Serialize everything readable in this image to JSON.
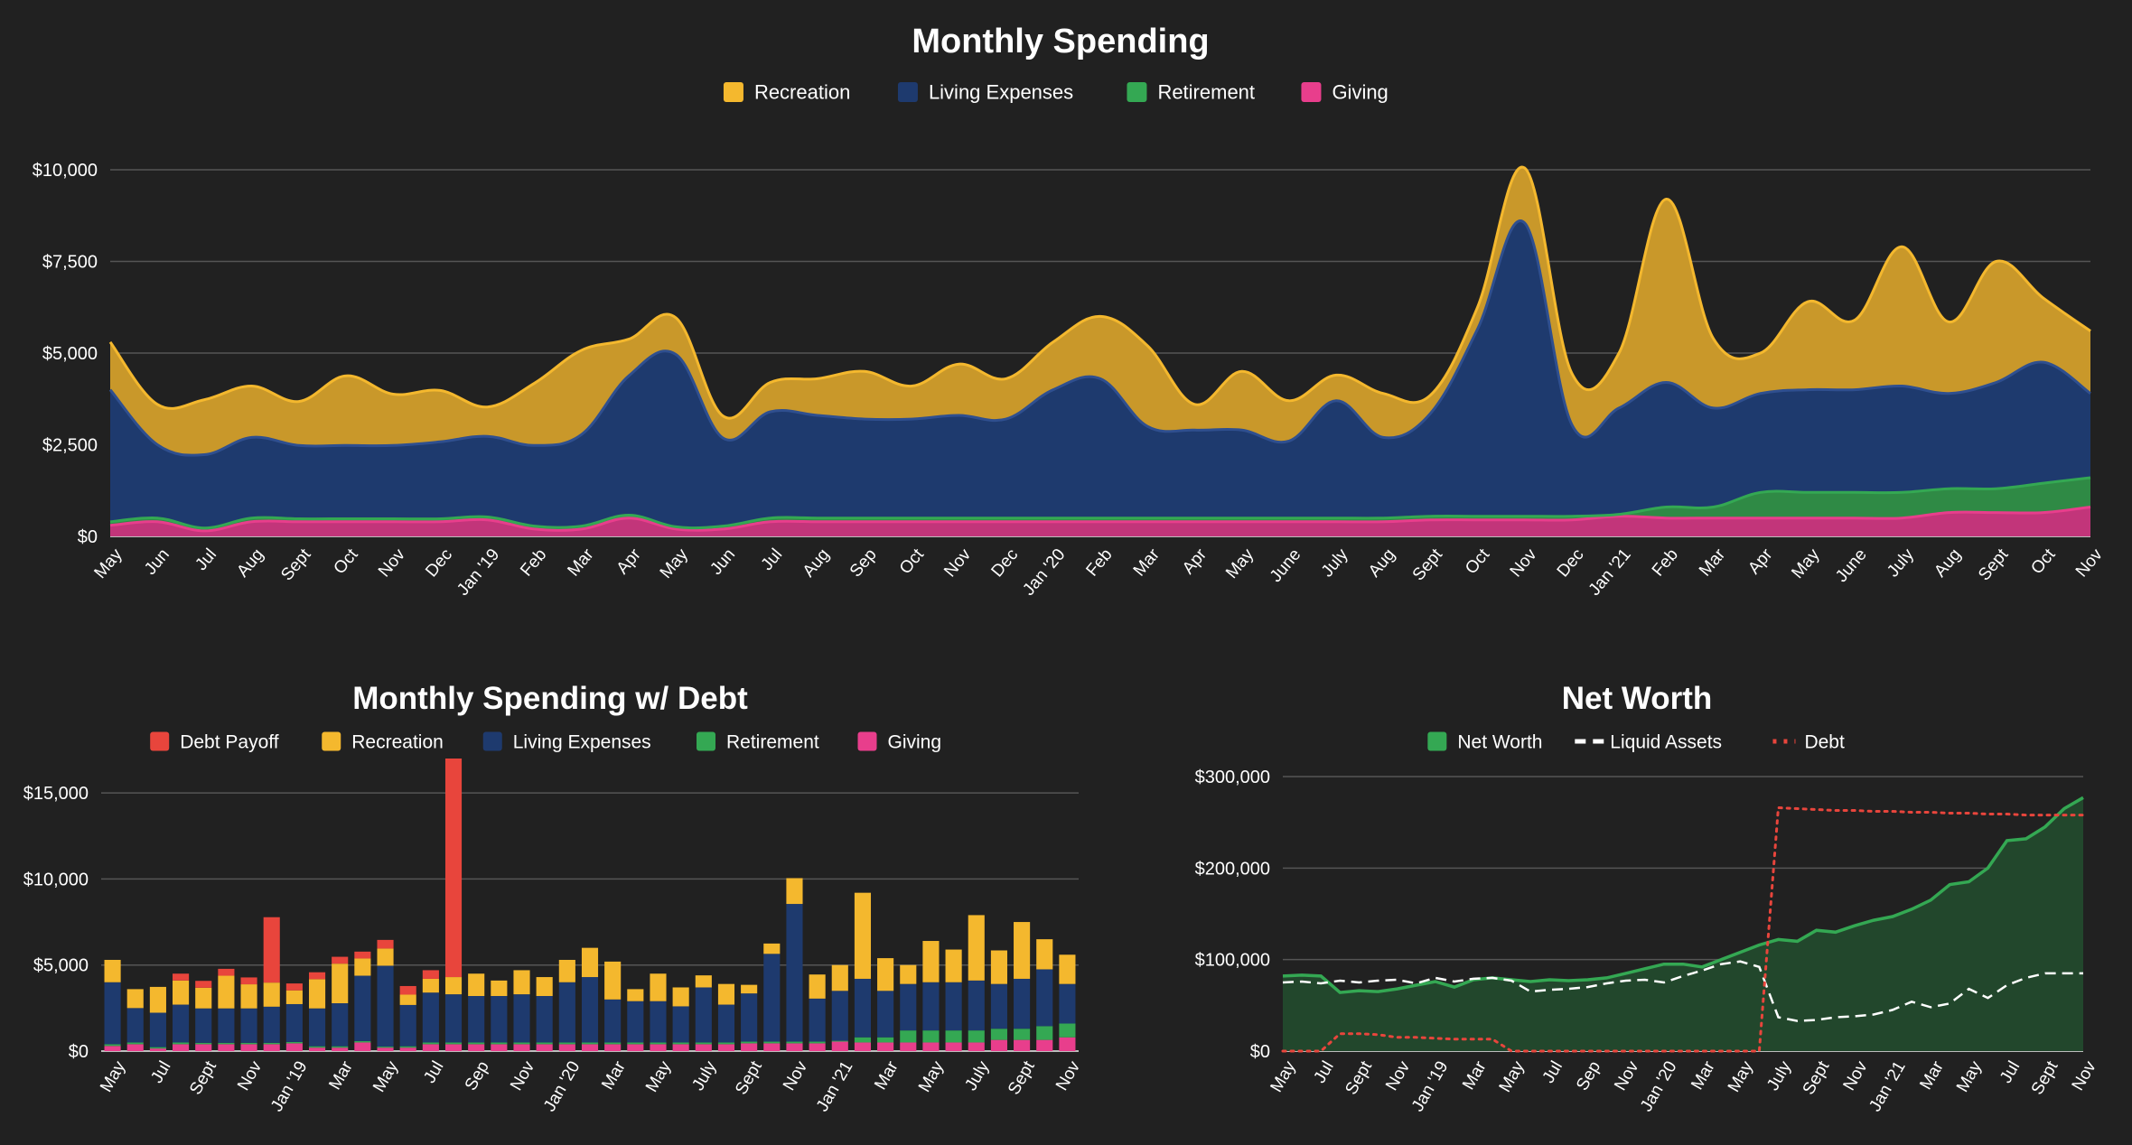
{
  "charts": [
    {
      "type": "area",
      "stacked": true,
      "title": "Monthly Spending",
      "legend_position": "top",
      "grid": true,
      "ylim": [
        0,
        10000
      ],
      "yticks": [
        "$0",
        "$2,500",
        "$5,000",
        "$7,500",
        "$10,000"
      ],
      "ytick_values": [
        0,
        2500,
        5000,
        7500,
        10000
      ],
      "categories": [
        "May",
        "Jun",
        "Jul",
        "Aug",
        "Sept",
        "Oct",
        "Nov",
        "Dec",
        "Jan '19",
        "Feb",
        "Mar",
        "Apr",
        "May",
        "Jun",
        "Jul",
        "Aug",
        "Sep",
        "Oct",
        "Nov",
        "Dec",
        "Jan '20",
        "Feb",
        "Mar",
        "Apr",
        "May",
        "June",
        "July",
        "Aug",
        "Sept",
        "Oct",
        "Nov",
        "Dec",
        "Jan '21",
        "Feb",
        "Mar",
        "Apr",
        "May",
        "June",
        "July",
        "Aug",
        "Sept",
        "Oct",
        "Nov"
      ],
      "series": [
        {
          "name": "Giving",
          "color": "#e83e8c",
          "values": [
            300,
            400,
            150,
            400,
            400,
            400,
            400,
            400,
            450,
            200,
            200,
            500,
            200,
            200,
            400,
            400,
            400,
            400,
            400,
            400,
            400,
            400,
            400,
            400,
            400,
            400,
            400,
            400,
            450,
            450,
            450,
            450,
            550,
            500,
            500,
            500,
            500,
            500,
            500,
            650,
            650,
            650,
            800
          ]
        },
        {
          "name": "Retirement",
          "color": "#34a853",
          "values": [
            100,
            100,
            80,
            100,
            80,
            80,
            80,
            80,
            80,
            80,
            80,
            80,
            60,
            80,
            100,
            100,
            100,
            100,
            100,
            100,
            100,
            100,
            100,
            100,
            100,
            100,
            100,
            100,
            100,
            100,
            100,
            100,
            50,
            300,
            300,
            700,
            700,
            700,
            700,
            650,
            650,
            800,
            800
          ]
        },
        {
          "name": "Living Expenses",
          "color": "#1e3a6e",
          "values": [
            3600,
            2000,
            2000,
            2200,
            2000,
            2000,
            2000,
            2100,
            2200,
            2200,
            2500,
            3800,
            4700,
            2400,
            2900,
            2800,
            2700,
            2700,
            2800,
            2700,
            3500,
            3800,
            2500,
            2400,
            2400,
            2100,
            3200,
            2200,
            2800,
            5100,
            8000,
            2500,
            2900,
            3400,
            2700,
            2700,
            2800,
            2800,
            2900,
            2600,
            2900,
            3300,
            2300
          ]
        },
        {
          "name": "Recreation",
          "color": "#f4b82e",
          "values": [
            1300,
            1100,
            1500,
            1400,
            1200,
            1900,
            1400,
            1400,
            800,
            1700,
            2300,
            1000,
            1000,
            600,
            800,
            1000,
            1300,
            900,
            1400,
            1100,
            1300,
            1700,
            2200,
            700,
            1600,
            1100,
            700,
            1200,
            500,
            600,
            1500,
            1400,
            1500,
            5000,
            1900,
            1100,
            2400,
            1900,
            3800,
            1950,
            3300,
            1750,
            1700
          ]
        }
      ]
    },
    {
      "type": "bar",
      "stacked": true,
      "title": "Monthly Spending w/ Debt",
      "legend_position": "top",
      "grid": true,
      "ylim": [
        0,
        17000
      ],
      "yticks": [
        "$0",
        "$5,000",
        "$10,000",
        "$15,000"
      ],
      "ytick_values": [
        0,
        5000,
        10000,
        15000
      ],
      "categories": [
        "May",
        "Jun",
        "Jul",
        "Aug",
        "Sept",
        "Oct",
        "Nov",
        "Dec",
        "Jan '19",
        "Feb",
        "Mar",
        "Apr",
        "May",
        "Jun",
        "Jul",
        "Aug",
        "Sep",
        "Oct",
        "Nov",
        "Dec",
        "Jan '20",
        "Feb",
        "Mar",
        "Apr",
        "May",
        "June",
        "July",
        "Aug",
        "Sept",
        "Oct",
        "Nov",
        "Dec",
        "Jan '21",
        "Feb",
        "Mar",
        "Apr",
        "May",
        "June",
        "July",
        "Aug",
        "Sept",
        "Oct",
        "Nov"
      ],
      "xtick_labels": [
        "May",
        "Jul",
        "Sept",
        "Nov",
        "Jan '19",
        "Mar",
        "May",
        "Jul",
        "Sep",
        "Nov",
        "Jan '20",
        "Mar",
        "May",
        "July",
        "Sept",
        "Nov",
        "Jan '21",
        "Mar",
        "May",
        "July",
        "Sept",
        "Nov"
      ],
      "series": [
        {
          "name": "Giving",
          "color": "#e83e8c",
          "values": [
            300,
            400,
            150,
            400,
            400,
            400,
            400,
            400,
            450,
            200,
            200,
            500,
            200,
            200,
            400,
            400,
            400,
            400,
            400,
            400,
            400,
            400,
            400,
            400,
            400,
            400,
            400,
            400,
            450,
            450,
            450,
            450,
            550,
            500,
            500,
            500,
            500,
            500,
            500,
            650,
            650,
            650,
            800
          ]
        },
        {
          "name": "Retirement",
          "color": "#34a853",
          "values": [
            100,
            100,
            80,
            100,
            80,
            80,
            80,
            80,
            80,
            80,
            80,
            80,
            60,
            80,
            100,
            100,
            100,
            100,
            100,
            100,
            100,
            100,
            100,
            100,
            100,
            100,
            100,
            100,
            100,
            100,
            100,
            100,
            50,
            300,
            300,
            700,
            700,
            700,
            700,
            650,
            650,
            800,
            800
          ]
        },
        {
          "name": "Living Expenses",
          "color": "#1e3a6e",
          "values": [
            3600,
            2000,
            2000,
            2200,
            2000,
            2000,
            2000,
            2100,
            2200,
            2200,
            2500,
            3800,
            4700,
            2400,
            2900,
            2800,
            2700,
            2700,
            2800,
            2700,
            3500,
            3800,
            2500,
            2400,
            2400,
            2100,
            3200,
            2200,
            2800,
            5100,
            8000,
            2500,
            2900,
            3400,
            2700,
            2700,
            2800,
            2800,
            2900,
            2600,
            2900,
            3300,
            2300
          ]
        },
        {
          "name": "Recreation",
          "color": "#f4b82e",
          "values": [
            1300,
            1100,
            1500,
            1400,
            1200,
            1900,
            1400,
            1400,
            800,
            1700,
            2300,
            1000,
            1000,
            600,
            800,
            1000,
            1300,
            900,
            1400,
            1100,
            1300,
            1700,
            2200,
            700,
            1600,
            1100,
            700,
            1200,
            500,
            600,
            1500,
            1400,
            1500,
            5000,
            1900,
            1100,
            2400,
            1900,
            3800,
            1950,
            3300,
            1750,
            1700
          ]
        },
        {
          "name": "Debt Payoff",
          "color": "#e8453c",
          "values": [
            0,
            0,
            0,
            400,
            400,
            400,
            400,
            3800,
            400,
            400,
            400,
            400,
            500,
            500,
            500,
            12700,
            0,
            0,
            0,
            0,
            0,
            0,
            0,
            0,
            0,
            0,
            0,
            0,
            0,
            0,
            0,
            0,
            0,
            0,
            0,
            0,
            0,
            0,
            0,
            0,
            0,
            0,
            0
          ]
        }
      ],
      "legend_order": [
        "Debt Payoff",
        "Recreation",
        "Living Expenses",
        "Retirement",
        "Giving"
      ]
    },
    {
      "type": "line",
      "title": "Net Worth",
      "legend_position": "top",
      "grid": true,
      "ylim": [
        0,
        300000
      ],
      "yticks": [
        "$0",
        "$100,000",
        "$200,000",
        "$300,000"
      ],
      "ytick_values": [
        0,
        100000,
        200000,
        300000
      ],
      "categories": [
        "May",
        "Jun",
        "Jul",
        "Aug",
        "Sept",
        "Oct",
        "Nov",
        "Dec",
        "Jan '19",
        "Feb",
        "Mar",
        "Apr",
        "May",
        "Jun",
        "Jul",
        "Aug",
        "Sep",
        "Oct",
        "Nov",
        "Dec",
        "Jan '20",
        "Feb",
        "Mar",
        "Apr",
        "May",
        "June",
        "July",
        "Aug",
        "Sept",
        "Oct",
        "Nov",
        "Dec",
        "Jan '21",
        "Feb",
        "Mar",
        "Apr",
        "May",
        "June",
        "July",
        "Aug",
        "Sept",
        "Oct",
        "Nov"
      ],
      "xtick_labels": [
        "May",
        "Jul",
        "Sept",
        "Nov",
        "Jan '19",
        "Mar",
        "May",
        "Jul",
        "Sep",
        "Nov",
        "Jan '20",
        "Mar",
        "May",
        "July",
        "Sept",
        "Nov",
        "Jan '21",
        "Mar",
        "May",
        "Jul",
        "Sept",
        "Nov"
      ],
      "series": [
        {
          "name": "Net Worth",
          "color": "#34a853",
          "style": "area",
          "values": [
            82000,
            83000,
            82000,
            64000,
            66000,
            65000,
            68000,
            72000,
            76000,
            70000,
            78000,
            80000,
            78000,
            76000,
            78000,
            77000,
            78000,
            80000,
            85000,
            90000,
            95000,
            95000,
            92000,
            100000,
            108000,
            116000,
            122000,
            120000,
            132000,
            130000,
            137000,
            143000,
            147000,
            155000,
            165000,
            182000,
            185000,
            200000,
            230000,
            232000,
            245000,
            265000,
            277000
          ]
        },
        {
          "name": "Liquid Assets",
          "color": "#ffffff",
          "style": "dashed",
          "values": [
            75000,
            76000,
            74000,
            77000,
            75000,
            77000,
            78000,
            74000,
            80000,
            76000,
            79000,
            80000,
            77000,
            65000,
            67000,
            68000,
            70000,
            74000,
            77000,
            78000,
            75000,
            82000,
            88000,
            95000,
            98000,
            92000,
            37000,
            33000,
            34000,
            37000,
            38000,
            40000,
            45000,
            54000,
            48000,
            52000,
            68000,
            58000,
            72000,
            80000,
            85000,
            85000,
            85000
          ]
        },
        {
          "name": "Debt",
          "color": "#e8453c",
          "style": "dotted",
          "values": [
            0,
            0,
            0,
            19000,
            19000,
            18000,
            15000,
            15000,
            14000,
            13000,
            13000,
            13000,
            0,
            0,
            0,
            0,
            0,
            0,
            0,
            0,
            0,
            0,
            0,
            0,
            0,
            0,
            266000,
            265000,
            264000,
            263000,
            263000,
            262000,
            262000,
            261000,
            261000,
            260000,
            260000,
            259000,
            259000,
            258000,
            258000,
            258000,
            258000
          ]
        }
      ]
    }
  ]
}
